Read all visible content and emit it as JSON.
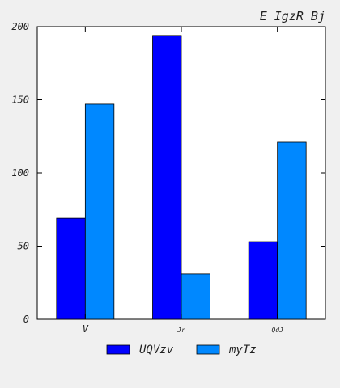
{
  "chart_data": {
    "type": "bar",
    "title": "E IgzR Bj",
    "xlabel": "",
    "ylabel": "",
    "categories": [
      "V",
      "Jr",
      "QdJ"
    ],
    "series": [
      {
        "name": "UQVzv",
        "values": [
          69,
          194,
          53
        ],
        "color": "#0000ff"
      },
      {
        "name": "myTz",
        "values": [
          147,
          31,
          121
        ],
        "color": "#0088ff"
      }
    ],
    "ylim": [
      0,
      200
    ],
    "yticks": [
      "0",
      "50",
      "100",
      "150",
      "200"
    ],
    "grid": false,
    "legend": "bottom-center"
  }
}
